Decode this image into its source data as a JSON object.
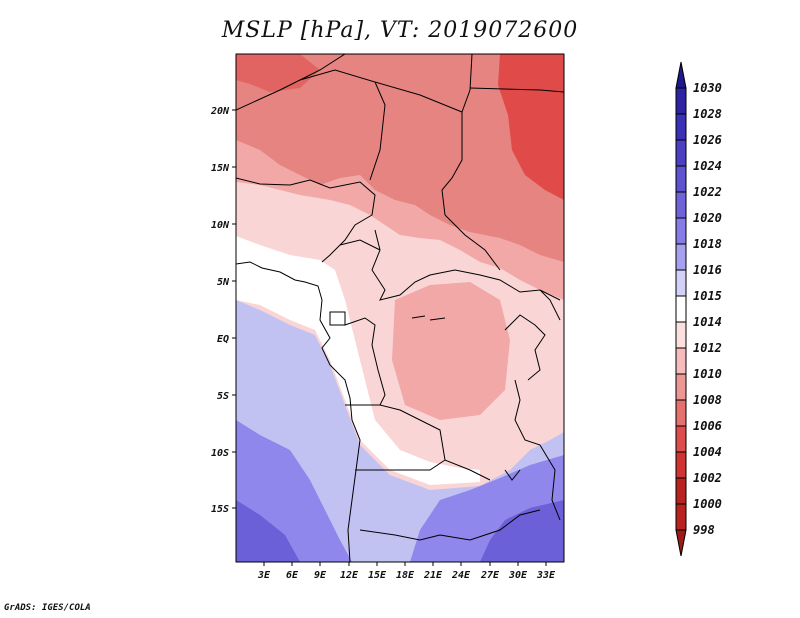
{
  "title": "MSLP [hPa], VT: 2019072600",
  "credit": "GrADS: IGES/COLA",
  "map": {
    "lat_labels": [
      "20N",
      "15N",
      "10N",
      "5N",
      "EQ",
      "5S",
      "10S",
      "15S"
    ],
    "lon_labels": [
      "3E",
      "6E",
      "9E",
      "12E",
      "15E",
      "18E",
      "21E",
      "24E",
      "27E",
      "30E",
      "33E"
    ],
    "fill_colors": {
      "very_low": "#e04a48",
      "low": "#e58481",
      "mid_low": "#f1a8a6",
      "near_normal": "#f9d6d5",
      "normal": "#ffffff",
      "mid_high": "#c2c2f2",
      "high": "#8f87eb",
      "very_high": "#6b60d8"
    }
  },
  "colorbar": {
    "levels": [
      "1030",
      "1028",
      "1026",
      "1024",
      "1022",
      "1020",
      "1018",
      "1016",
      "1015",
      "1014",
      "1012",
      "1010",
      "1008",
      "1006",
      "1004",
      "1002",
      "1000",
      "998"
    ],
    "colors": [
      "#1f178c",
      "#2d23a3",
      "#3a31b6",
      "#4b40c3",
      "#5e52cf",
      "#7062d9",
      "#877ce6",
      "#a79ff0",
      "#d4d1f8",
      "#ffffff",
      "#fbe0df",
      "#f5bcbb",
      "#ed9795",
      "#e5716f",
      "#dc4d4b",
      "#d03432",
      "#b8231f",
      "#a01b18"
    ]
  }
}
